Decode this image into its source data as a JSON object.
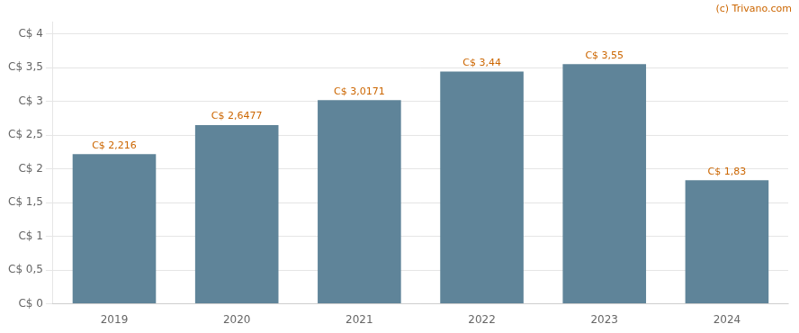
{
  "chart_data": {
    "type": "bar",
    "categories": [
      "2019",
      "2020",
      "2021",
      "2022",
      "2023",
      "2024"
    ],
    "values": [
      2.216,
      2.6477,
      3.0171,
      3.44,
      3.55,
      1.83
    ],
    "value_labels": [
      "C$ 2,216",
      "C$ 2,6477",
      "C$ 3,0171",
      "C$ 3,44",
      "C$ 3,55",
      "C$ 1,83"
    ],
    "data_labels": true,
    "color": "#5f8499",
    "ylim": [
      0,
      4.18
    ],
    "yticks": [
      {
        "value": 0,
        "label": "C$ 0"
      },
      {
        "value": 0.5,
        "label": "C$ 0,5"
      },
      {
        "value": 1.0,
        "label": "C$ 1"
      },
      {
        "value": 1.5,
        "label": "C$ 1,5"
      },
      {
        "value": 2.0,
        "label": "C$ 2"
      },
      {
        "value": 2.5,
        "label": "C$ 2,5"
      },
      {
        "value": 3.0,
        "label": "C$ 3"
      },
      {
        "value": 3.5,
        "label": "C$ 3,5"
      },
      {
        "value": 4.0,
        "label": "C$ 4"
      }
    ],
    "grid": true,
    "annotations": [
      "(c) Trivano.com"
    ]
  }
}
